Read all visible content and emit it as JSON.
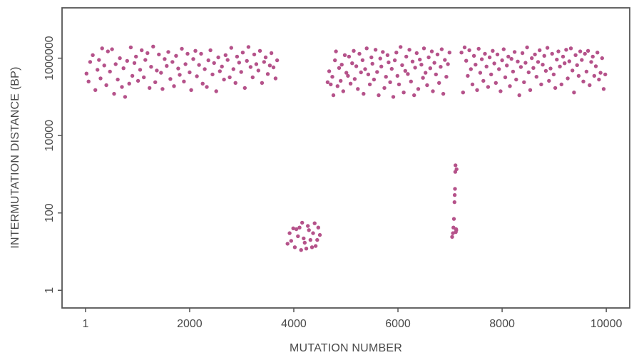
{
  "chart_data": {
    "type": "scatter",
    "title": "",
    "xlabel": "MUTATION NUMBER",
    "ylabel": "INTERMUTATION DISTANCE (BP)",
    "x_ticks": [
      1,
      2000,
      4000,
      6000,
      8000,
      10000
    ],
    "x_tick_labels": [
      "1",
      "2000",
      "4000",
      "6000",
      "8000",
      "10000"
    ],
    "y_ticks": [
      1,
      100,
      10000,
      1000000
    ],
    "y_tick_labels": [
      "1",
      "100",
      "10000",
      "1000000"
    ],
    "y_scale": "log10",
    "xlim": [
      -450,
      10450
    ],
    "ylim": [
      0.35,
      20000000
    ],
    "grid": false,
    "legend": "none",
    "point_color": "#b5528a",
    "axis_color": "#555555",
    "series": [
      {
        "x": [
          20,
          60,
          90,
          140,
          190,
          230,
          260,
          290,
          320,
          360,
          400,
          430,
          470,
          510,
          550,
          580,
          620,
          660,
          700,
          730,
          760,
          800,
          840,
          870,
          900,
          940,
          970,
          1010,
          1050,
          1080,
          1120,
          1150,
          1190,
          1230,
          1260,
          1300,
          1340,
          1370,
          1410,
          1450,
          1480,
          1520,
          1560,
          1590,
          1630,
          1670,
          1700,
          1740,
          1780,
          1810,
          1850,
          1890,
          1920,
          1960,
          2000,
          2030,
          2070,
          2110,
          2140,
          2180,
          2220,
          2250,
          2290,
          2330,
          2360,
          2400,
          2440,
          2470,
          2510,
          2550,
          2580,
          2620,
          2660,
          2690,
          2730,
          2770,
          2800,
          2840,
          2880,
          2910,
          2950,
          2990,
          3020,
          3060,
          3100,
          3130,
          3170,
          3210,
          3240,
          3280,
          3320,
          3350,
          3390,
          3430,
          3460,
          3500,
          3540,
          3570,
          3610,
          3650,
          3680
        ],
        "y": [
          400000,
          250000,
          800000,
          1200000,
          150000,
          500000,
          900000,
          300000,
          1800000,
          650000,
          200000,
          1500000,
          450000,
          1700000,
          120000,
          700000,
          280000,
          1000000,
          180000,
          550000,
          100000,
          850000,
          220000,
          1900000,
          350000,
          750000,
          1100000,
          260000,
          500000,
          1600000,
          320000,
          900000,
          1350000,
          170000,
          600000,
          2000000,
          240000,
          480000,
          1250000,
          420000,
          160000,
          950000,
          630000,
          1450000,
          290000,
          800000,
          190000,
          1150000,
          540000,
          370000,
          1750000,
          250000,
          700000,
          1300000,
          430000,
          150000,
          950000,
          1550000,
          340000,
          670000,
          1300000,
          220000,
          520000,
          180000,
          880000,
          1600000,
          380000,
          750000,
          140000,
          1050000,
          460000,
          610000,
          280000,
          1200000,
          900000,
          320000,
          1850000,
          520000,
          230000,
          1100000,
          770000,
          440000,
          1400000,
          170000,
          850000,
          1950000,
          590000,
          320000,
          1250000,
          700000,
          480000,
          1550000,
          230000,
          800000,
          1050000,
          390000,
          650000,
          1350000,
          580000,
          300000,
          880000
        ]
      },
      {
        "x": [
          3880,
          3920,
          3950,
          3990,
          4020,
          4050,
          4080,
          4110,
          4140,
          4160,
          4190,
          4210,
          4240,
          4270,
          4290,
          4320,
          4350,
          4370,
          4400,
          4420,
          4450,
          4470,
          4500
        ],
        "y": [
          16,
          30,
          19,
          40,
          13,
          38,
          25,
          42,
          11,
          56,
          22,
          17,
          12,
          46,
          36,
          20,
          13,
          30,
          54,
          14,
          20,
          42,
          27
        ]
      },
      {
        "x": [
          7040,
          7055,
          7065,
          7075,
          7085,
          7090,
          7095,
          7100,
          7105,
          7110,
          7115,
          7120,
          7125
        ],
        "y": [
          24,
          30,
          42,
          70,
          190,
          290,
          420,
          1150,
          1700,
          32,
          38,
          36,
          1350
        ]
      },
      {
        "x": [
          4650,
          4680,
          4710,
          4740,
          4760,
          4790,
          4810,
          4840,
          4870,
          4900,
          4920,
          4950,
          4980,
          5010,
          5040,
          5060,
          5090,
          5120,
          5150,
          5170,
          5200,
          5230,
          5260,
          5290,
          5320,
          5340,
          5370,
          5400,
          5430,
          5460,
          5490,
          5510,
          5540,
          5570,
          5600,
          5630,
          5660,
          5680,
          5710,
          5740,
          5770,
          5800,
          5820,
          5850,
          5880,
          5910,
          5940,
          5970,
          5990,
          6020,
          6050,
          6080,
          6110,
          6140,
          6160,
          6190,
          6220,
          6250,
          6280,
          6310,
          6330,
          6360,
          6390,
          6420,
          6450,
          6480,
          6500,
          6530,
          6560,
          6590,
          6620,
          6650,
          6670,
          6700,
          6730,
          6760,
          6790,
          6820,
          6840,
          6870,
          6900,
          6930,
          6960,
          6990
        ],
        "y": [
          240000,
          460000,
          210000,
          330000,
          110000,
          880000,
          1500000,
          190000,
          560000,
          260000,
          680000,
          140000,
          1200000,
          420000,
          350000,
          1100000,
          220000,
          740000,
          1550000,
          290000,
          620000,
          160000,
          1300000,
          430000,
          890000,
          120000,
          520000,
          1800000,
          380000,
          210000,
          1050000,
          720000,
          280000,
          1650000,
          440000,
          110000,
          980000,
          610000,
          1450000,
          170000,
          330000,
          1200000,
          780000,
          240000,
          530000,
          100000,
          880000,
          1400000,
          350000,
          210000,
          1950000,
          660000,
          130000,
          470000,
          1100000,
          390000,
          1650000,
          250000,
          820000,
          110000,
          570000,
          1350000,
          160000,
          920000,
          680000,
          310000,
          1800000,
          420000,
          200000,
          1050000,
          550000,
          1500000,
          140000,
          760000,
          380000,
          1250000,
          230000,
          600000,
          1700000,
          120000,
          900000,
          330000,
          700000,
          1400000
        ]
      },
      {
        "x": [
          7220,
          7250,
          7280,
          7310,
          7340,
          7370,
          7400,
          7430,
          7460,
          7490,
          7520,
          7550,
          7580,
          7610,
          7640,
          7670,
          7700,
          7730,
          7760,
          7790,
          7820,
          7850,
          7880,
          7910,
          7940,
          7970,
          8000,
          8030,
          8060,
          8090,
          8120,
          8150,
          8180,
          8210,
          8240,
          8270,
          8300,
          8330,
          8360,
          8390,
          8420,
          8450,
          8480,
          8510,
          8540,
          8570,
          8600,
          8630,
          8660,
          8690,
          8720,
          8750,
          8780,
          8810,
          8840,
          8870,
          8900,
          8930,
          8960,
          8990,
          9020,
          9050,
          9080,
          9110,
          9140,
          9170,
          9200,
          9230,
          9260,
          9290,
          9320,
          9350,
          9380,
          9410,
          9440,
          9470,
          9500,
          9530,
          9560,
          9590,
          9620,
          9650,
          9680,
          9710,
          9740,
          9770,
          9800,
          9830,
          9860,
          9890,
          9920,
          9950,
          9980
        ],
        "y": [
          1400000,
          130000,
          1900000,
          860000,
          350000,
          1600000,
          520000,
          210000,
          1150000,
          680000,
          150000,
          1750000,
          420000,
          940000,
          260000,
          1300000,
          610000,
          180000,
          1050000,
          380000,
          1550000,
          730000,
          230000,
          1250000,
          520000,
          140000,
          880000,
          1700000,
          320000,
          650000,
          1100000,
          190000,
          960000,
          450000,
          1450000,
          280000,
          820000,
          110000,
          590000,
          1350000,
          240000,
          760000,
          1900000,
          430000,
          150000,
          1000000,
          560000,
          1250000,
          330000,
          800000,
          1600000,
          210000,
          680000,
          1150000,
          470000,
          1850000,
          260000,
          540000,
          1300000,
          380000,
          170000,
          920000,
          1500000,
          610000,
          210000,
          1100000,
          740000,
          1650000,
          300000,
          830000,
          1800000,
          480000,
          130000,
          1200000,
          660000,
          350000,
          1500000,
          900000,
          250000,
          1300000,
          450000,
          1550000,
          200000,
          800000,
          1100000,
          350000,
          620000,
          1400000,
          280000,
          420000,
          1000000,
          160000,
          380000
        ]
      }
    ]
  }
}
